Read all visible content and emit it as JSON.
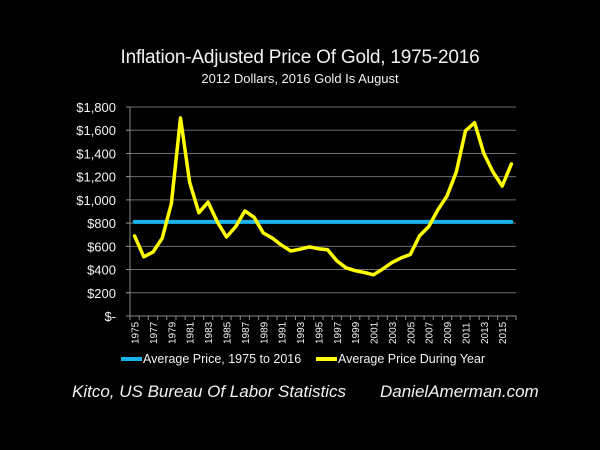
{
  "chart_data": {
    "type": "line",
    "title": "Inflation-Adjusted Price Of Gold, 1975-2016",
    "subtitle": "2012 Dollars, 2016 Gold Is August",
    "xlabel": "",
    "ylabel": "",
    "ylim": [
      0,
      1800
    ],
    "yticks": [
      0,
      200,
      400,
      600,
      800,
      1000,
      1200,
      1400,
      1600,
      1800
    ],
    "ytick_labels": [
      "$-",
      "$200",
      "$400",
      "$600",
      "$800",
      "$1,000",
      "$1,200",
      "$1,400",
      "$1,600",
      "$1,800"
    ],
    "x": [
      1975,
      1976,
      1977,
      1978,
      1979,
      1980,
      1981,
      1982,
      1983,
      1984,
      1985,
      1986,
      1987,
      1988,
      1989,
      1990,
      1991,
      1992,
      1993,
      1994,
      1995,
      1996,
      1997,
      1998,
      1999,
      2000,
      2001,
      2002,
      2003,
      2004,
      2005,
      2006,
      2007,
      2008,
      2009,
      2010,
      2011,
      2012,
      2013,
      2014,
      2015,
      2016
    ],
    "xtick_labels": [
      "1975",
      "1977",
      "1979",
      "1981",
      "1983",
      "1985",
      "1987",
      "1989",
      "1991",
      "1993",
      "1995",
      "1997",
      "1999",
      "2001",
      "2003",
      "2005",
      "2007",
      "2009",
      "2011",
      "2013",
      "2015"
    ],
    "grid": true,
    "legend_position": "bottom",
    "series": [
      {
        "name": "Average Price, 1975 to 2016",
        "color": "#1ab2ea",
        "values": [
          810,
          810,
          810,
          810,
          810,
          810,
          810,
          810,
          810,
          810,
          810,
          810,
          810,
          810,
          810,
          810,
          810,
          810,
          810,
          810,
          810,
          810,
          810,
          810,
          810,
          810,
          810,
          810,
          810,
          810,
          810,
          810,
          810,
          810,
          810,
          810,
          810,
          810,
          810,
          810,
          810,
          810
        ]
      },
      {
        "name": "Average Price During Year",
        "color": "#ffff00",
        "values": [
          690,
          510,
          550,
          670,
          970,
          1705,
          1150,
          890,
          980,
          810,
          680,
          770,
          905,
          850,
          715,
          670,
          610,
          560,
          575,
          595,
          580,
          570,
          475,
          415,
          390,
          375,
          355,
          405,
          460,
          500,
          530,
          690,
          770,
          915,
          1035,
          1240,
          1595,
          1665,
          1400,
          1240,
          1120,
          1310
        ]
      }
    ]
  },
  "footer": {
    "source": "Kitco, US Bureau Of Labor Statistics",
    "website": "DanielAmerman.com"
  }
}
